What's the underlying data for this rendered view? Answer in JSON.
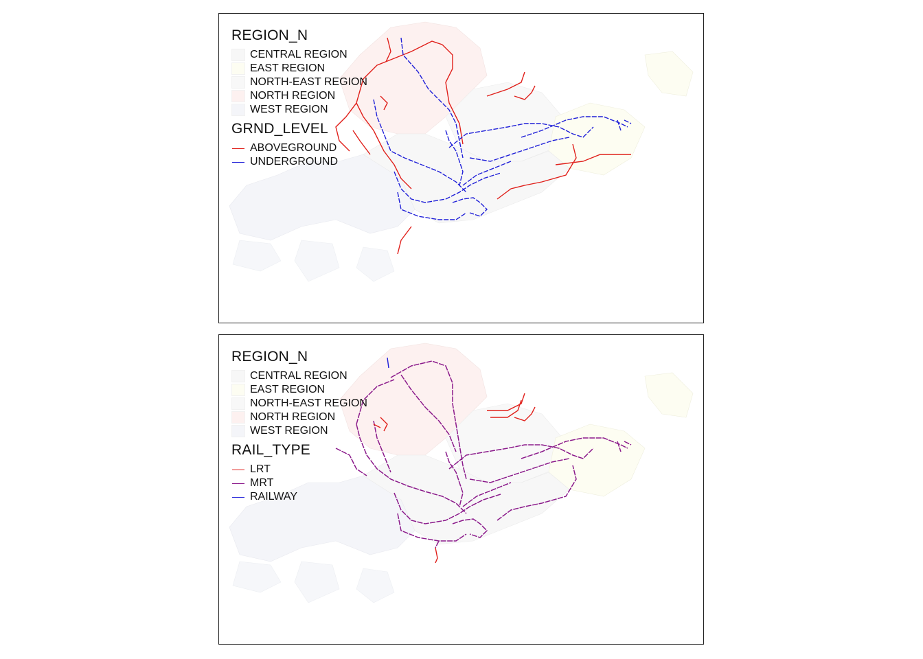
{
  "panels": [
    {
      "region_legend": {
        "title": "REGION_N",
        "items": [
          {
            "label": "CENTRAL REGION",
            "color": "#f7f7f7"
          },
          {
            "label": "EAST REGION",
            "color": "#fdfdf2"
          },
          {
            "label": "NORTH-EAST REGION",
            "color": "#f8f8f8"
          },
          {
            "label": "NORTH REGION",
            "color": "#fdf1f0"
          },
          {
            "label": "WEST REGION",
            "color": "#f4f5f9"
          }
        ]
      },
      "line_legend": {
        "title": "GRND_LEVEL",
        "items": [
          {
            "label": "ABOVEGROUND",
            "color": "#e0201b"
          },
          {
            "label": "UNDERGROUND",
            "color": "#1f1fd8"
          }
        ]
      }
    },
    {
      "region_legend": {
        "title": "REGION_N",
        "items": [
          {
            "label": "CENTRAL REGION",
            "color": "#f7f7f7"
          },
          {
            "label": "EAST REGION",
            "color": "#fdfdf2"
          },
          {
            "label": "NORTH-EAST REGION",
            "color": "#f8f8f8"
          },
          {
            "label": "NORTH REGION",
            "color": "#fdf1f0"
          },
          {
            "label": "WEST REGION",
            "color": "#f4f5f9"
          }
        ]
      },
      "line_legend": {
        "title": "RAIL_TYPE",
        "items": [
          {
            "label": "LRT",
            "color": "#e0201b"
          },
          {
            "label": "MRT",
            "color": "#8b1a8b"
          },
          {
            "label": "RAILWAY",
            "color": "#1f1fd8"
          }
        ]
      }
    }
  ]
}
